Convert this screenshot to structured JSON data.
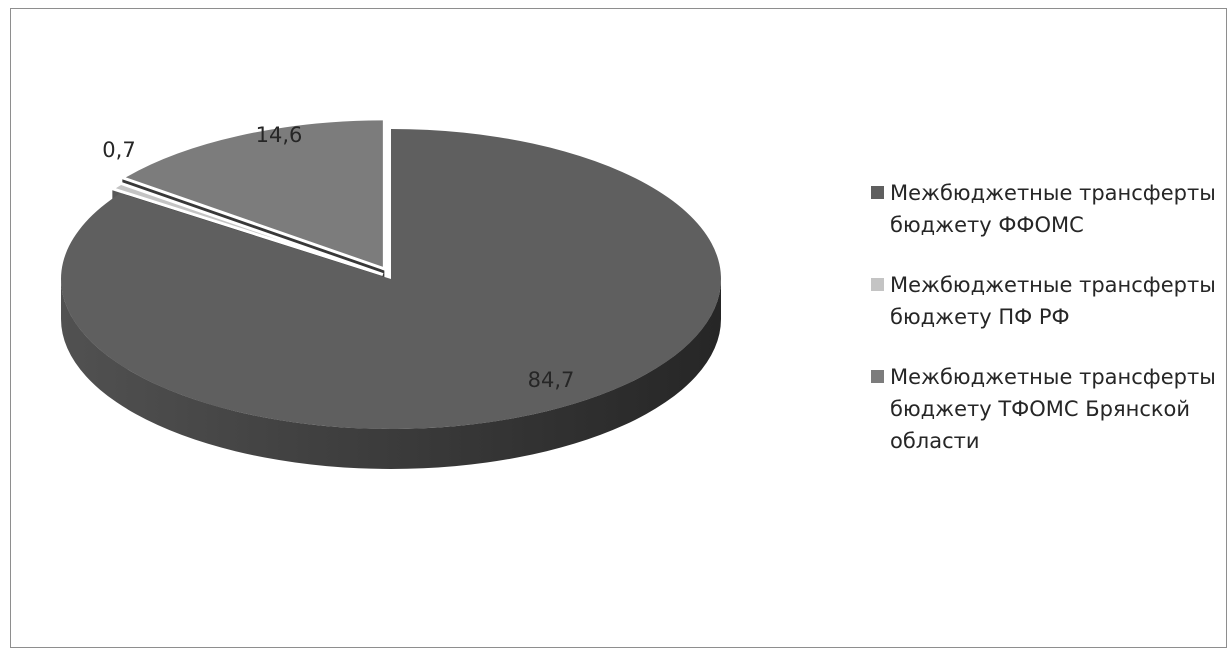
{
  "chart_data": {
    "type": "pie",
    "title": "",
    "slices": [
      {
        "label": "Межбюджетные трансферты бюджету ФФОМС",
        "value": 84.7,
        "value_label": "84,7",
        "color": "#5f5f5f"
      },
      {
        "label": "Межбюджетные трансферты бюджету ПФ РФ",
        "value": 0.7,
        "value_label": "0,7",
        "color": "#c4c4c4"
      },
      {
        "label": "Межбюджетные трансферты бюджету ТФОМС Брянской области",
        "value": 14.6,
        "value_label": "14,6",
        "color": "#7c7c7c"
      }
    ],
    "legend": {
      "position": "right",
      "lines": [
        [
          "Межбюджетные трансферты",
          "бюджету ФФОМС"
        ],
        [
          "Межбюджетные трансферты",
          "бюджету ПФ РФ"
        ],
        [
          "Межбюджетные трансферты",
          "бюджету ТФОМС Брянской",
          "области"
        ]
      ]
    },
    "style": "3d-exploded"
  }
}
